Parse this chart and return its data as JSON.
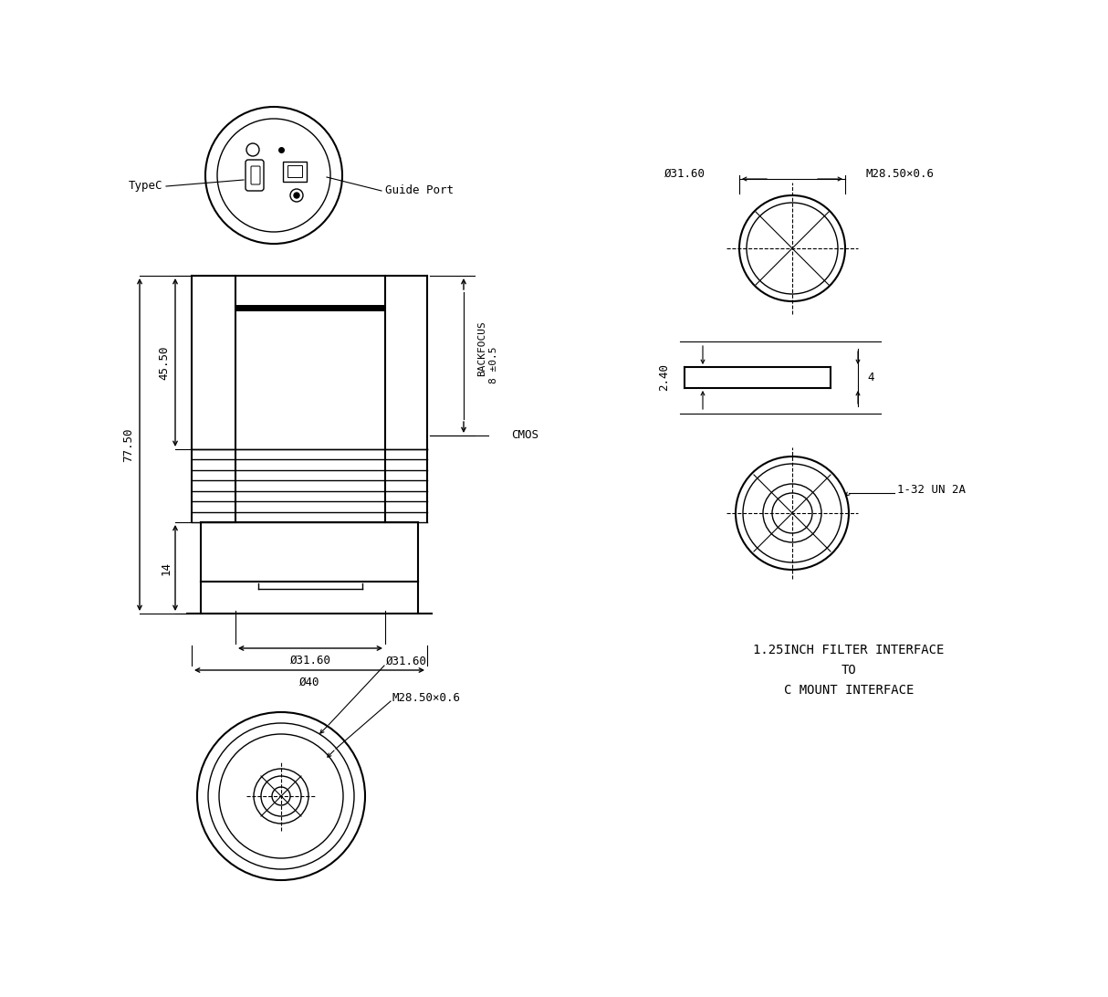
{
  "bg_color": "#ffffff",
  "line_color": "#000000",
  "annotations": {
    "typeC": "TypeC",
    "guide_port": "Guide Port",
    "backfocus": "BACKFOCUS",
    "backfocus2": "8 ±0.5",
    "cmos": "CMOS",
    "d31_60_main": "Ø31.60",
    "d40": "Ø40",
    "dim_77_50": "77.50",
    "dim_45_50": "45.50",
    "dim_14": "14",
    "d31_60_top": "Ø31.60",
    "m28_50_top": "M28.50×0.6",
    "d31_60_bot": "Ø31.60",
    "m28_50_bot": "M28.50×0.6",
    "filter_text1": "1.25INCH FILTER INTERFACE",
    "filter_text2": "TO",
    "filter_text3": "C MOUNT INTERFACE",
    "dim_2_40": "2.40",
    "dim_4": "4",
    "dim_1_32": "1-32 UN 2A"
  }
}
